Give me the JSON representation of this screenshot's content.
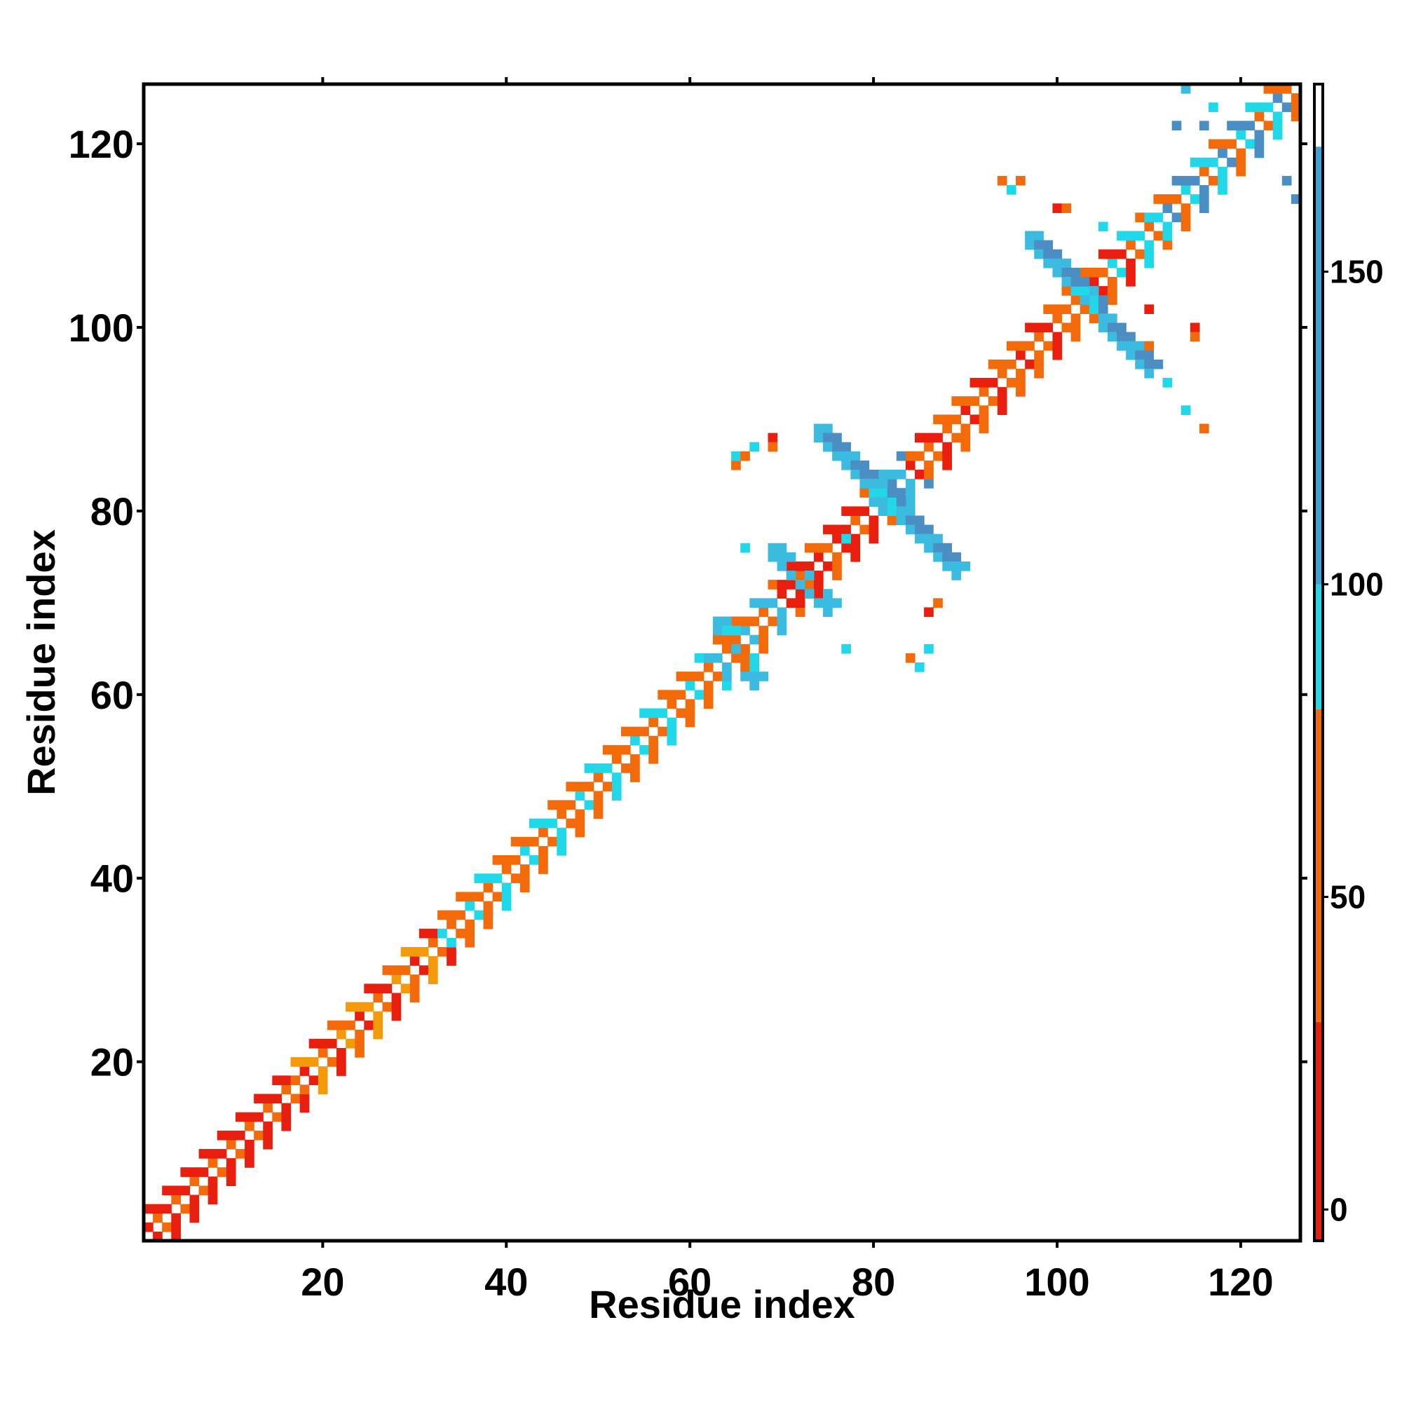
{
  "chart_data": {
    "type": "heatmap",
    "title": "",
    "xlabel": "Residue index",
    "ylabel": "Residue index",
    "xlim": [
      1,
      126
    ],
    "ylim": [
      1,
      126
    ],
    "x_ticks": [
      20,
      40,
      60,
      80,
      100,
      120
    ],
    "y_ticks": [
      20,
      40,
      60,
      80,
      100,
      120
    ],
    "colorbar": {
      "range": [
        -5,
        180
      ],
      "ticks": [
        0,
        50,
        100,
        150
      ],
      "bands": [
        {
          "from": -5,
          "to": 30,
          "color": "#e81f0f"
        },
        {
          "from": 30,
          "to": 80,
          "color": "#f26a0a"
        },
        {
          "from": 80,
          "to": 100,
          "color": "#21d8e8"
        },
        {
          "from": 100,
          "to": 170,
          "color": "#3fa0d6"
        },
        {
          "from": 170,
          "to": 180,
          "color": "#ffffff"
        }
      ]
    },
    "colors": {
      "red": "#e81f0f",
      "orange": "#f26a0a",
      "amber": "#f29a0a",
      "cyan": "#21d8e8",
      "sky": "#3bbbe0",
      "steel": "#4a8ec4"
    },
    "diagonal_bands": [
      {
        "from": 1,
        "to": 17,
        "colors": [
          "red",
          "orange"
        ]
      },
      {
        "from": 17,
        "to": 33,
        "colors": [
          "orange",
          "red",
          "amber"
        ]
      },
      {
        "from": 33,
        "to": 62,
        "colors": [
          "orange",
          "cyan",
          "orange"
        ]
      },
      {
        "from": 62,
        "to": 70,
        "colors": [
          "orange",
          "sky",
          "orange"
        ]
      },
      {
        "from": 70,
        "to": 80,
        "colors": [
          "red",
          "orange",
          "red"
        ]
      },
      {
        "from": 80,
        "to": 84,
        "colors": [
          "sky",
          "cyan",
          "steel"
        ]
      },
      {
        "from": 84,
        "to": 102,
        "colors": [
          "orange",
          "red",
          "orange"
        ]
      },
      {
        "from": 102,
        "to": 110,
        "colors": [
          "red",
          "orange",
          "cyan"
        ]
      },
      {
        "from": 110,
        "to": 126,
        "colors": [
          "orange",
          "cyan",
          "steel"
        ]
      }
    ],
    "off_diagonal_crosses": [
      {
        "center": [
          80,
          81
        ],
        "from": [
          74,
          89
        ],
        "to": [
          89,
          74
        ],
        "color": "steel"
      },
      {
        "center": [
          103,
          103
        ],
        "from": [
          97,
          110
        ],
        "to": [
          110,
          96
        ],
        "color": "steel"
      },
      {
        "center": [
          71,
          72
        ],
        "from": [
          69,
          76
        ],
        "to": [
          75,
          70
        ],
        "color": "sky"
      },
      {
        "center": [
          65,
          65
        ],
        "from": [
          63,
          68
        ],
        "to": [
          67,
          62
        ],
        "color": "cyan"
      }
    ],
    "scattered_cells": [
      [
        65,
        85,
        "orange"
      ],
      [
        65,
        86,
        "cyan"
      ],
      [
        66,
        86,
        "orange"
      ],
      [
        67,
        87,
        "cyan"
      ],
      [
        69,
        88,
        "red"
      ],
      [
        69,
        87,
        "orange"
      ],
      [
        66,
        76,
        "cyan"
      ],
      [
        77,
        77,
        "cyan"
      ],
      [
        87,
        70,
        "orange"
      ],
      [
        86,
        69,
        "red"
      ],
      [
        86,
        65,
        "cyan"
      ],
      [
        84,
        64,
        "orange"
      ],
      [
        85,
        63,
        "cyan"
      ],
      [
        77,
        65,
        "cyan"
      ],
      [
        94,
        116,
        "orange"
      ],
      [
        95,
        115,
        "cyan"
      ],
      [
        96,
        116,
        "orange"
      ],
      [
        100,
        113,
        "red"
      ],
      [
        101,
        113,
        "orange"
      ],
      [
        105,
        111,
        "cyan"
      ],
      [
        110,
        102,
        "red"
      ],
      [
        110,
        98,
        "orange"
      ],
      [
        115,
        100,
        "red"
      ],
      [
        115,
        99,
        "orange"
      ],
      [
        114,
        91,
        "cyan"
      ],
      [
        116,
        89,
        "orange"
      ],
      [
        112,
        94,
        "cyan"
      ],
      [
        116,
        122,
        "steel"
      ],
      [
        117,
        124,
        "cyan"
      ],
      [
        125,
        116,
        "steel"
      ],
      [
        126,
        114,
        "steel"
      ],
      [
        114,
        126,
        "sky"
      ],
      [
        113,
        122,
        "steel"
      ],
      [
        120,
        117,
        "steel"
      ]
    ]
  }
}
